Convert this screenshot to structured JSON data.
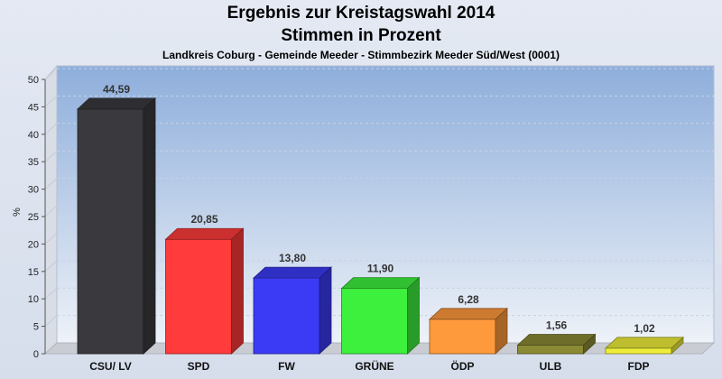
{
  "header": {
    "title": "Ergebnis zur Kreistagswahl 2014",
    "subtitle": "Stimmen in Prozent",
    "district": "Landkreis Coburg - Gemeinde Meeder - Stimmbezirk Meeder Süd/West (0001)"
  },
  "chart_data": {
    "type": "bar",
    "title": "Ergebnis zur Kreistagswahl 2014",
    "subtitle": "Stimmen in Prozent",
    "ylabel": "%",
    "xlabel": "",
    "ylim": [
      0,
      50
    ],
    "yticks": [
      0,
      5,
      10,
      15,
      20,
      25,
      30,
      35,
      40,
      45,
      50
    ],
    "grid": true,
    "categories": [
      "CSU/ LV",
      "SPD",
      "FW",
      "GRÜNE",
      "ÖDP",
      "ULB",
      "FDP"
    ],
    "values": [
      44.59,
      20.85,
      13.8,
      11.9,
      6.28,
      1.56,
      1.02
    ],
    "value_labels": [
      "44,59",
      "20,85",
      "13,80",
      "11,90",
      "6,28",
      "1,56",
      "1,02"
    ],
    "colors": [
      "#3a3a3e",
      "#ff3b3b",
      "#3b3bf5",
      "#3df03d",
      "#ff9a3c",
      "#8a8a35",
      "#eeee3a"
    ]
  }
}
